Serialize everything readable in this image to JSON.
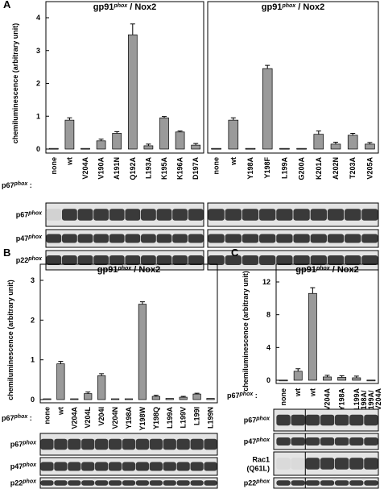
{
  "chart_data": [
    {
      "type": "bar",
      "panel": "A",
      "title": [
        "gp91",
        "phox",
        " / Nox2"
      ],
      "ylabel": "chemiluminescence (arbitrary unit)",
      "lane_label": [
        "p67",
        "phox",
        " :"
      ],
      "categories": [
        "none",
        "wt",
        "V204A",
        "V190A",
        "A191N",
        "Q192A",
        "L193A",
        "K195A",
        "K196A",
        "D197A"
      ],
      "values": [
        0.02,
        0.88,
        0.02,
        0.25,
        0.48,
        3.48,
        0.1,
        0.95,
        0.52,
        0.12
      ],
      "errors": [
        null,
        0.07,
        null,
        0.05,
        0.05,
        0.33,
        0.05,
        0.04,
        0.03,
        0.05
      ],
      "ylim": [
        0,
        4
      ],
      "yticks": [
        0,
        1,
        2,
        3,
        4
      ],
      "color": "#9a9a9a",
      "blots": [
        {
          "name": "p67",
          "sup": "phox"
        },
        {
          "name": "p47",
          "sup": "phox"
        },
        {
          "name": "p22",
          "sup": "phox"
        }
      ]
    },
    {
      "type": "bar",
      "title": [
        "gp91",
        "phox",
        " / Nox2"
      ],
      "categories": [
        "none",
        "wt",
        "Y198A",
        "Y198F",
        "L199A",
        "G200A",
        "K201A",
        "A202N",
        "T203A",
        "V205A"
      ],
      "values": [
        0.02,
        0.88,
        0.02,
        2.45,
        0.02,
        0.02,
        0.45,
        0.15,
        0.42,
        0.15
      ],
      "errors": [
        null,
        0.07,
        null,
        0.1,
        null,
        null,
        0.1,
        0.06,
        0.06,
        0.05
      ],
      "ylim": [
        0,
        4
      ],
      "color": "#9a9a9a"
    },
    {
      "type": "bar",
      "panel": "B",
      "title": [
        "gp91",
        "phox",
        " / Nox2"
      ],
      "ylabel": "chemiluminescence (arbitrary unit)",
      "lane_label": [
        "p67",
        "phox",
        " :"
      ],
      "categories": [
        "none",
        "wt",
        "V204A",
        "V204L",
        "V204I",
        "V204N",
        "Y198A",
        "Y198W",
        "Y198Q",
        "L199A",
        "L199V",
        "L199I",
        "L199N"
      ],
      "values": [
        0.02,
        0.9,
        0.02,
        0.15,
        0.6,
        0.02,
        0.02,
        2.4,
        0.08,
        0.03,
        0.06,
        0.14,
        0.03
      ],
      "errors": [
        null,
        0.06,
        null,
        0.04,
        0.05,
        null,
        null,
        0.06,
        0.03,
        null,
        0.02,
        0.02,
        null
      ],
      "ylim": [
        0,
        3
      ],
      "yticks": [
        0,
        1,
        2,
        3
      ],
      "color": "#9a9a9a",
      "blots": [
        {
          "name": "p67",
          "sup": "phox"
        },
        {
          "name": "p47",
          "sup": "phox"
        },
        {
          "name": "p22",
          "sup": "phox"
        }
      ]
    },
    {
      "type": "bar",
      "panel": "C",
      "title": [
        "gp91",
        "phox",
        " / Nox2"
      ],
      "ylabel": "chemiluminescence (arbitrary unit)",
      "lane_label": [
        "p67",
        "phox",
        " :"
      ],
      "categories": [
        "none",
        "wt",
        "wt",
        "V204A",
        "Y198A",
        "L199A",
        "Y198A/ L199A/ V204A"
      ],
      "values": [
        0.02,
        1.1,
        10.6,
        0.4,
        0.35,
        0.3,
        0.02
      ],
      "errors": [
        null,
        0.3,
        0.7,
        0.2,
        0.2,
        0.2,
        null
      ],
      "ylim": [
        0,
        12
      ],
      "yticks": [
        0,
        4,
        8,
        12
      ],
      "color": "#9a9a9a",
      "blots": [
        {
          "name": "p67",
          "sup": "phox"
        },
        {
          "name": "p47",
          "sup": "phox"
        },
        {
          "name": "Rac1",
          "line2": "(Q61L)"
        },
        {
          "name": "p22",
          "sup": "phox"
        }
      ]
    }
  ]
}
